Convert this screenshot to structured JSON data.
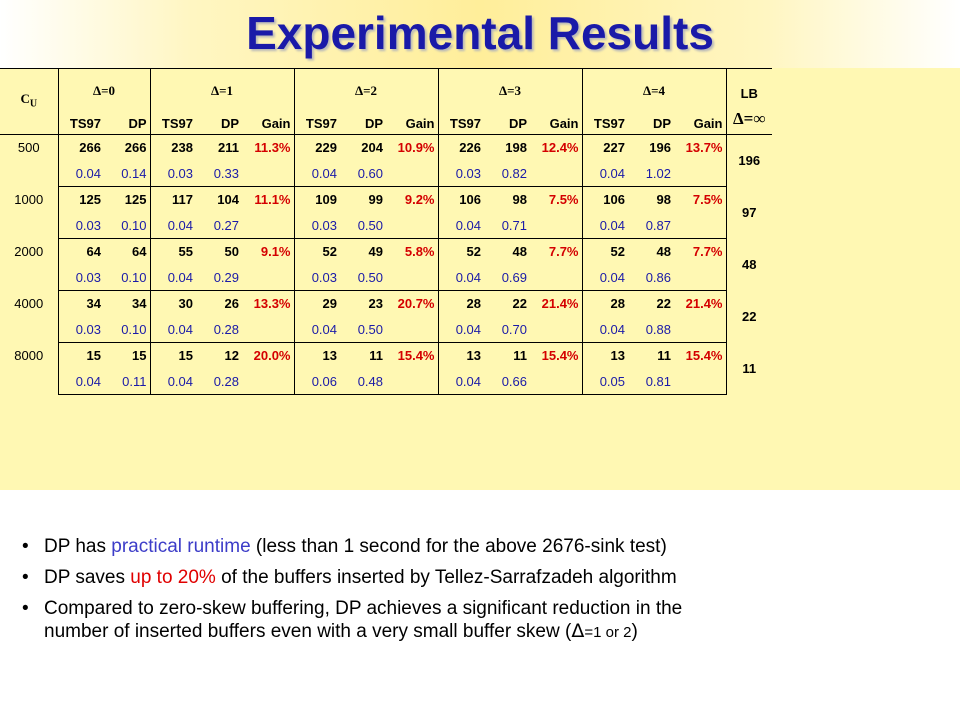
{
  "title": "Experimental Results",
  "table": {
    "cu_label": "C",
    "cu_sub": "U",
    "lb_label": "LB",
    "lb_delta": "Δ=∞",
    "deltas": [
      "Δ=0",
      "Δ=1",
      "Δ=2",
      "Δ=3",
      "Δ=4"
    ],
    "sub_ts97": "TS97",
    "sub_dp": "DP",
    "sub_gain": "Gain",
    "rows": [
      {
        "cu": "500",
        "d0": [
          "266",
          "266"
        ],
        "d0t": [
          "0.04",
          "0.14"
        ],
        "d1": [
          "238",
          "211",
          "11.3%"
        ],
        "d1t": [
          "0.03",
          "0.33"
        ],
        "d2": [
          "229",
          "204",
          "10.9%"
        ],
        "d2t": [
          "0.04",
          "0.60"
        ],
        "d3": [
          "226",
          "198",
          "12.4%"
        ],
        "d3t": [
          "0.03",
          "0.82"
        ],
        "d4": [
          "227",
          "196",
          "13.7%"
        ],
        "d4t": [
          "0.04",
          "1.02"
        ],
        "lb": "196"
      },
      {
        "cu": "1000",
        "d0": [
          "125",
          "125"
        ],
        "d0t": [
          "0.03",
          "0.10"
        ],
        "d1": [
          "117",
          "104",
          "11.1%"
        ],
        "d1t": [
          "0.04",
          "0.27"
        ],
        "d2": [
          "109",
          "99",
          "9.2%"
        ],
        "d2t": [
          "0.03",
          "0.50"
        ],
        "d3": [
          "106",
          "98",
          "7.5%"
        ],
        "d3t": [
          "0.04",
          "0.71"
        ],
        "d4": [
          "106",
          "98",
          "7.5%"
        ],
        "d4t": [
          "0.04",
          "0.87"
        ],
        "lb": "97"
      },
      {
        "cu": "2000",
        "d0": [
          "64",
          "64"
        ],
        "d0t": [
          "0.03",
          "0.10"
        ],
        "d1": [
          "55",
          "50",
          "9.1%"
        ],
        "d1t": [
          "0.04",
          "0.29"
        ],
        "d2": [
          "52",
          "49",
          "5.8%"
        ],
        "d2t": [
          "0.03",
          "0.50"
        ],
        "d3": [
          "52",
          "48",
          "7.7%"
        ],
        "d3t": [
          "0.04",
          "0.69"
        ],
        "d4": [
          "52",
          "48",
          "7.7%"
        ],
        "d4t": [
          "0.04",
          "0.86"
        ],
        "lb": "48"
      },
      {
        "cu": "4000",
        "d0": [
          "34",
          "34"
        ],
        "d0t": [
          "0.03",
          "0.10"
        ],
        "d1": [
          "30",
          "26",
          "13.3%"
        ],
        "d1t": [
          "0.04",
          "0.28"
        ],
        "d2": [
          "29",
          "23",
          "20.7%"
        ],
        "d2t": [
          "0.04",
          "0.50"
        ],
        "d3": [
          "28",
          "22",
          "21.4%"
        ],
        "d3t": [
          "0.04",
          "0.70"
        ],
        "d4": [
          "28",
          "22",
          "21.4%"
        ],
        "d4t": [
          "0.04",
          "0.88"
        ],
        "lb": "22"
      },
      {
        "cu": "8000",
        "d0": [
          "15",
          "15"
        ],
        "d0t": [
          "0.04",
          "0.11"
        ],
        "d1": [
          "15",
          "12",
          "20.0%"
        ],
        "d1t": [
          "0.04",
          "0.28"
        ],
        "d2": [
          "13",
          "11",
          "15.4%"
        ],
        "d2t": [
          "0.06",
          "0.48"
        ],
        "d3": [
          "13",
          "11",
          "15.4%"
        ],
        "d3t": [
          "0.04",
          "0.66"
        ],
        "d4": [
          "13",
          "11",
          "15.4%"
        ],
        "d4t": [
          "0.05",
          "0.81"
        ],
        "lb": "11"
      }
    ]
  },
  "bullets": {
    "b1_pre": "DP has ",
    "b1_hl": "practical runtime",
    "b1_post": " (less than 1 second for the above 2676-sink test)",
    "b2_pre": "DP saves ",
    "b2_hl": "up to 20%",
    "b2_post": " of the buffers inserted by Tellez-Sarrafzadeh algorithm",
    "b3_line1": "Compared to zero-skew buffering, DP achieves a significant reduction in the",
    "b3_line2_pre": "number of inserted buffers even with a very small buffer skew (",
    "b3_delta": "Δ",
    "b3_small": "=1 or 2",
    "b3_close": ")",
    "dot": "•"
  },
  "colors": {
    "title": "#1a1aa8",
    "table_bg": "#fff8b3",
    "runtime": "#1a1aa8",
    "gain": "#d40000",
    "highlight_blue": "#3c3cc8",
    "highlight_red": "#e00000"
  }
}
